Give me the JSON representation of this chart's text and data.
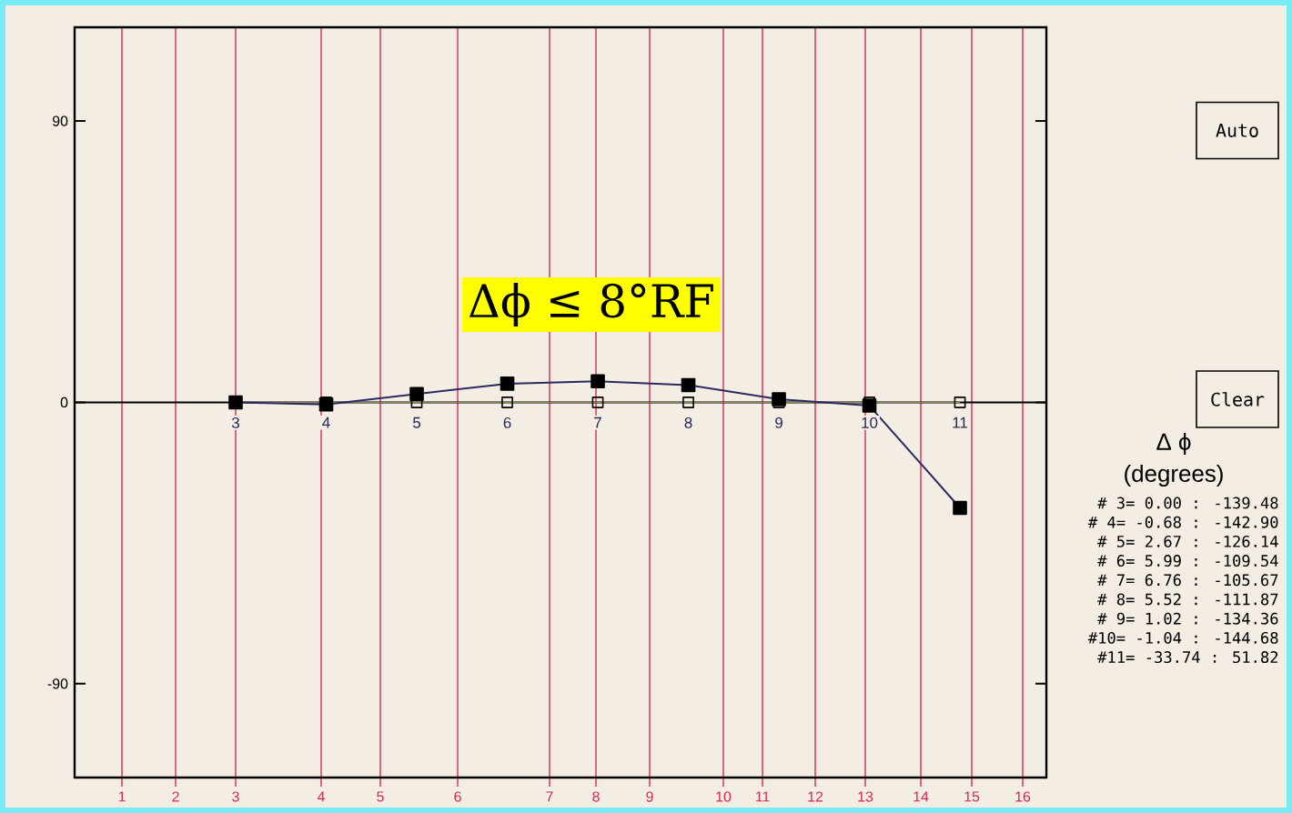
{
  "chart_data": {
    "type": "line",
    "categories": [
      "3",
      "4",
      "5",
      "6",
      "7",
      "8",
      "9",
      "10",
      "11"
    ],
    "series": [
      {
        "color": "#2a2a5e",
        "values": [
          0.0,
          -0.68,
          2.67,
          5.99,
          6.76,
          5.52,
          1.02,
          -1.04,
          -33.74
        ]
      },
      {
        "color": "#8c8c52",
        "values": [
          0,
          0,
          0,
          0,
          0,
          0,
          0,
          0,
          0
        ]
      }
    ],
    "ylim": [
      -120,
      120
    ],
    "yticks": [
      -90,
      0,
      90
    ],
    "marker": "square",
    "ref_lines": [
      {
        "axis": "y",
        "value": 0,
        "color": "#000000"
      }
    ],
    "annotations": [
      "Δϕ ≤ 8°RF",
      "Auto",
      "Clear",
      "Δ ϕ",
      "(degrees)",
      "# 3= 0.00 : -139.48",
      "# 4= -0.68 : -142.90",
      "# 5= 2.67 : -126.14",
      "# 6= 5.99 : -109.54",
      "# 7= 6.76 : -105.67",
      "# 8= 5.52 : -111.87",
      "# 9= 1.02 : -134.36",
      "#10= -1.04 : -144.68",
      "#11= -33.74 : 51.82",
      "1",
      "2",
      "3",
      "4",
      "5",
      "6",
      "7",
      "8",
      "9",
      "10",
      "11",
      "12",
      "13",
      "14",
      "15",
      "16"
    ]
  }
}
